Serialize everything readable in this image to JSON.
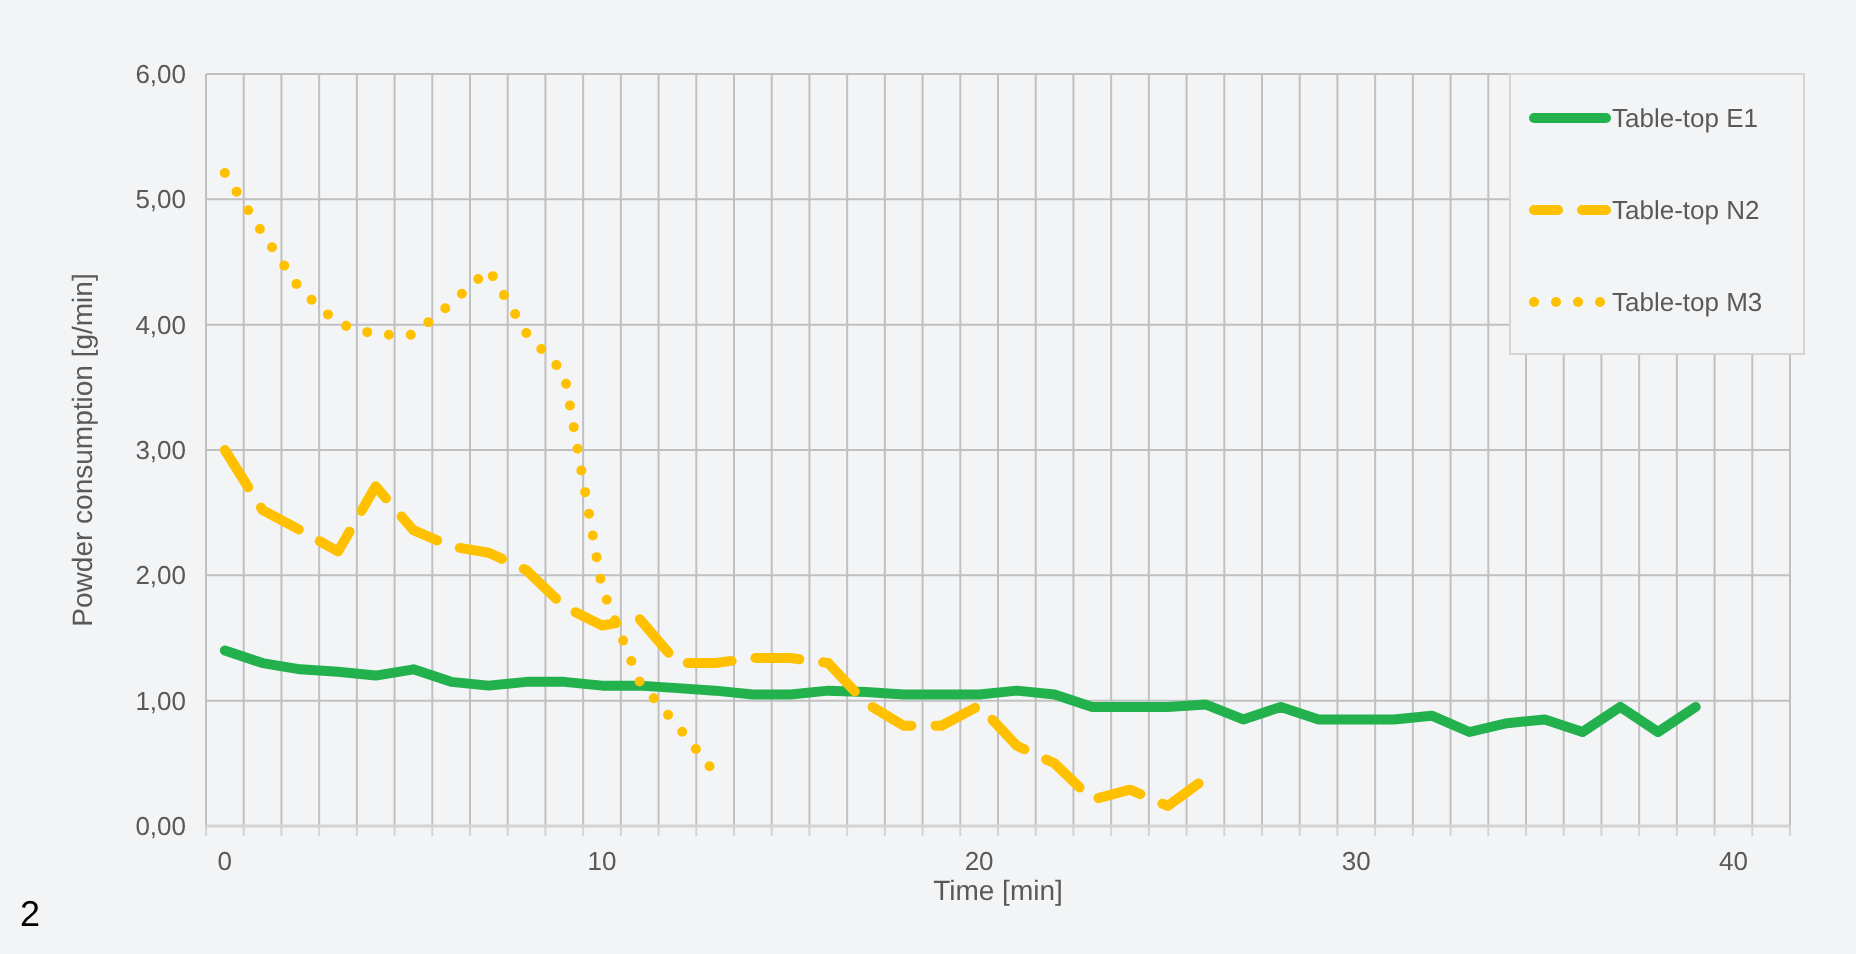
{
  "chart_data": {
    "type": "line",
    "xlabel": "Time [min]",
    "ylabel": "Powder consumption [g/min]",
    "xlim": [
      -0.5,
      41.5
    ],
    "xticks": [
      0,
      10,
      20,
      30,
      40
    ],
    "ylim": [
      0,
      6
    ],
    "yticks": [
      {
        "value": 0,
        "label": "0,00"
      },
      {
        "value": 1,
        "label": "1,00"
      },
      {
        "value": 2,
        "label": "2,00"
      },
      {
        "value": 3,
        "label": "3,00"
      },
      {
        "value": 4,
        "label": "4,00"
      },
      {
        "value": 5,
        "label": "5,00"
      },
      {
        "value": 6,
        "label": "6,00"
      }
    ],
    "grid": true,
    "legend": "top right",
    "annotations": [
      "2"
    ],
    "series": [
      {
        "name": "Table-top E1",
        "color": "#22b14c",
        "line_style": "solid",
        "x": [
          0,
          1,
          2,
          3,
          4,
          5,
          6,
          7,
          8,
          9,
          10,
          11,
          12,
          13,
          14,
          15,
          16,
          17,
          18,
          19,
          20,
          21,
          22,
          23,
          24,
          25,
          26,
          27,
          28,
          29,
          30,
          31,
          32,
          33,
          34,
          35,
          36,
          37,
          38,
          39
        ],
        "values": [
          1.4,
          1.3,
          1.25,
          1.23,
          1.2,
          1.25,
          1.15,
          1.12,
          1.15,
          1.15,
          1.12,
          1.12,
          1.1,
          1.08,
          1.05,
          1.05,
          1.08,
          1.07,
          1.05,
          1.05,
          1.05,
          1.08,
          1.05,
          0.95,
          0.95,
          0.95,
          0.97,
          0.85,
          0.95,
          0.85,
          0.85,
          0.85,
          0.88,
          0.75,
          0.82,
          0.85,
          0.75,
          0.95,
          0.75,
          0.95
        ]
      },
      {
        "name": "Table-top N2",
        "color": "#ffc000",
        "line_style": "dashed",
        "x": [
          0,
          1,
          2,
          3,
          4,
          5,
          6,
          7,
          8,
          9,
          10,
          11,
          12,
          13,
          14,
          15,
          16,
          17,
          18,
          19,
          20,
          21,
          22,
          23,
          24,
          25,
          26
        ],
        "values": [
          3.0,
          2.52,
          2.36,
          2.19,
          2.71,
          2.36,
          2.23,
          2.18,
          2.04,
          1.75,
          1.6,
          1.65,
          1.3,
          1.3,
          1.34,
          1.34,
          1.3,
          0.98,
          0.8,
          0.8,
          0.96,
          0.64,
          0.5,
          0.21,
          0.29,
          0.16,
          0.38
        ]
      },
      {
        "name": "Table-top M3",
        "color": "#ffc000",
        "line_style": "dotted",
        "x": [
          0,
          1,
          2,
          3,
          4,
          5,
          6,
          7,
          8,
          9,
          10,
          11,
          12,
          13
        ],
        "values": [
          5.21,
          4.73,
          4.28,
          4.01,
          3.92,
          3.92,
          4.17,
          4.44,
          3.93,
          3.61,
          1.9,
          1.15,
          0.8,
          0.42
        ]
      }
    ]
  }
}
